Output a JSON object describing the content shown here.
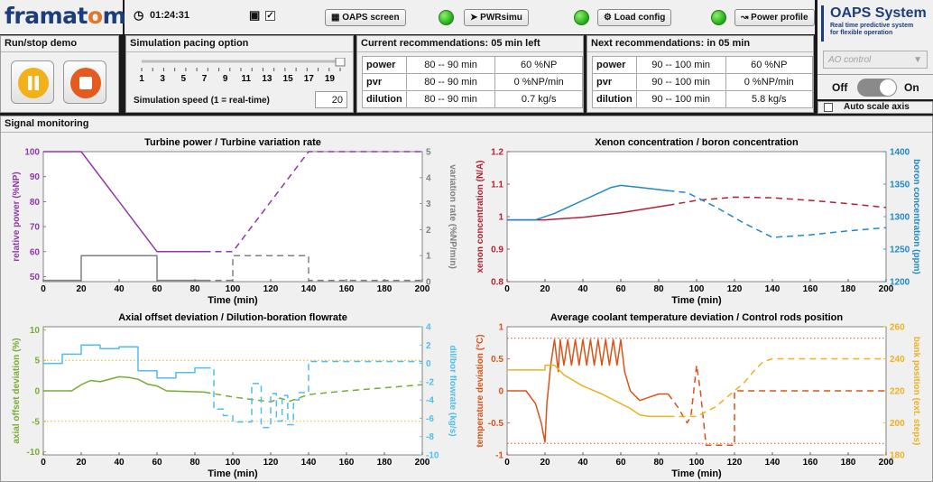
{
  "logo": {
    "pre": "framat",
    "o": "o",
    "post": "me"
  },
  "topbar": {
    "time": "01:24:31",
    "oaps_screen": "OAPS screen",
    "pwrsimu": "PWRsimu",
    "load_config": "Load config",
    "power_profile": "Power profile",
    "checkbox_mark": "✓"
  },
  "oaps": {
    "title": "OAPS System",
    "subtitle1": "Real time predictive system",
    "subtitle2": "for flexible operation",
    "select_value": "AO control",
    "off": "Off",
    "on": "On",
    "autoscale": "Auto scale axis"
  },
  "runstop": {
    "title": "Run/stop demo"
  },
  "pacing": {
    "title": "Simulation pacing option",
    "ticks": [
      "1",
      "3",
      "5",
      "7",
      "9",
      "11",
      "13",
      "15",
      "17",
      "19"
    ],
    "slider_value": 20,
    "speed_label": "Simulation speed (1 = real-time)",
    "speed_value": "20"
  },
  "current": {
    "title": "Current recommendations: 05 min left",
    "rows": [
      {
        "k": "power",
        "a": "80 -- 90 min",
        "b": "60 %NP"
      },
      {
        "k": "pvr",
        "a": "80 -- 90 min",
        "b": "0 %NP/min"
      },
      {
        "k": "dilution",
        "a": "80 -- 90 min",
        "b": "0.7 kg/s"
      }
    ]
  },
  "next": {
    "title": "Next recommendations: in 05 min",
    "rows": [
      {
        "k": "power",
        "a": "90 -- 100 min",
        "b": "60 %NP"
      },
      {
        "k": "pvr",
        "a": "90 -- 100 min",
        "b": "0 %NP/min"
      },
      {
        "k": "dilution",
        "a": "90 -- 100 min",
        "b": "5.8 kg/s"
      }
    ]
  },
  "monitor": {
    "title": "Signal monitoring"
  },
  "colors": {
    "purple": "#8e3aa6",
    "gray": "#808080",
    "red": "#b32134",
    "blue": "#1f88c8",
    "green": "#77ac30",
    "lightblue": "#4dbeee",
    "orange": "#d95319",
    "gold": "#edb120"
  },
  "chart_data": [
    {
      "type": "line",
      "title": "Turbine power / Turbine variation rate",
      "xlabel": "Time (min)",
      "ylabel": "relative power (%NP)",
      "y2label": "variation rate (%NP/min)",
      "xlim": [
        0,
        200
      ],
      "ylim": [
        48,
        100
      ],
      "y2lim": [
        0,
        5
      ],
      "xticks": [
        "0",
        "20",
        "40",
        "60",
        "80",
        "100",
        "120",
        "140",
        "160",
        "180",
        "200"
      ],
      "yticks": [
        "50",
        "60",
        "70",
        "80",
        "90",
        "100"
      ],
      "y2ticks": [
        "0",
        "1",
        "2",
        "3",
        "4",
        "5"
      ],
      "series": [
        {
          "axis": "left",
          "color": "#8e3aa6",
          "style": "solid",
          "x": [
            0,
            20,
            60,
            85
          ],
          "y": [
            100,
            100,
            60,
            60
          ]
        },
        {
          "axis": "left",
          "color": "#8e3aa6",
          "style": "dashed",
          "x": [
            85,
            100,
            140,
            200
          ],
          "y": [
            60,
            60,
            100,
            100
          ]
        },
        {
          "axis": "right",
          "color": "#808080",
          "style": "solid",
          "x": [
            0,
            20,
            20,
            60,
            60,
            85
          ],
          "y": [
            0.05,
            0.05,
            1,
            1,
            0.05,
            0.05
          ]
        },
        {
          "axis": "right",
          "color": "#808080",
          "style": "dashed",
          "x": [
            85,
            100,
            100,
            140,
            140,
            200
          ],
          "y": [
            0.05,
            0.05,
            1,
            1,
            0.05,
            0.05
          ]
        }
      ]
    },
    {
      "type": "line",
      "title": "Xenon concentration / boron concentration",
      "xlabel": "Time (min)",
      "ylabel": "xenon concentration (N/A)",
      "y2label": "boron concentration (ppm)",
      "xlim": [
        0,
        200
      ],
      "ylim": [
        0.8,
        1.2
      ],
      "y2lim": [
        1200,
        1400
      ],
      "xticks": [
        "0",
        "20",
        "40",
        "60",
        "80",
        "100",
        "120",
        "140",
        "160",
        "180",
        "200"
      ],
      "yticks": [
        "0.8",
        "0.9",
        "1",
        "1.1",
        "1.2"
      ],
      "y2ticks": [
        "1200",
        "1250",
        "1300",
        "1350",
        "1400"
      ],
      "series": [
        {
          "axis": "left",
          "color": "#b32134",
          "style": "solid",
          "x": [
            0,
            20,
            40,
            60,
            85
          ],
          "y": [
            0.99,
            0.99,
            0.998,
            1.012,
            1.035
          ]
        },
        {
          "axis": "left",
          "color": "#b32134",
          "style": "dashed",
          "x": [
            85,
            100,
            120,
            140,
            160,
            180,
            200
          ],
          "y": [
            1.035,
            1.05,
            1.06,
            1.058,
            1.05,
            1.04,
            1.028
          ]
        },
        {
          "axis": "right",
          "color": "#1f88c8",
          "style": "solid",
          "x": [
            0,
            15,
            25,
            40,
            55,
            60,
            70,
            85
          ],
          "y": [
            1295,
            1295,
            1305,
            1325,
            1345,
            1348,
            1345,
            1340
          ]
        },
        {
          "axis": "right",
          "color": "#1f88c8",
          "style": "dashed",
          "x": [
            85,
            95,
            110,
            125,
            140,
            160,
            180,
            200
          ],
          "y": [
            1340,
            1337,
            1315,
            1290,
            1268,
            1272,
            1278,
            1283
          ]
        }
      ]
    },
    {
      "type": "line",
      "title": "Axial offset deviation / Dilution-boration flowrate",
      "xlabel": "Time (min)",
      "ylabel": "axial offset deviation (%)",
      "y2label": "dil/bor flowrate (kg/s)",
      "xlim": [
        0,
        200
      ],
      "ylim": [
        -10.5,
        10.5
      ],
      "y2lim": [
        -10,
        4
      ],
      "xticks": [
        "0",
        "20",
        "40",
        "60",
        "80",
        "100",
        "120",
        "140",
        "160",
        "180",
        "200"
      ],
      "yticks": [
        "-10",
        "-5",
        "0",
        "5",
        "10"
      ],
      "y2ticks": [
        "-10",
        "-8",
        "-6",
        "-4",
        "-2",
        "0",
        "2",
        "4"
      ],
      "series": [
        {
          "axis": "left",
          "color": "#77ac30",
          "style": "solid",
          "x": [
            0,
            15,
            20,
            25,
            30,
            40,
            45,
            50,
            55,
            60,
            65,
            85
          ],
          "y": [
            0,
            0,
            1,
            1.7,
            1.5,
            2.3,
            2.2,
            1.9,
            1.1,
            0.8,
            0,
            -0.2
          ]
        },
        {
          "axis": "left",
          "color": "#77ac30",
          "style": "dashed",
          "x": [
            85,
            100,
            110,
            120,
            125,
            130,
            140,
            160,
            180,
            200
          ],
          "y": [
            -0.2,
            -1,
            -1.4,
            -1.8,
            -1.2,
            -1.7,
            -0.6,
            0,
            0.5,
            1
          ]
        },
        {
          "axis": "left",
          "color": "#edb120",
          "style": "dotted",
          "x": [
            0,
            200
          ],
          "y": [
            5,
            5
          ]
        },
        {
          "axis": "left",
          "color": "#edb120",
          "style": "dotted",
          "x": [
            0,
            200
          ],
          "y": [
            -5,
            -5
          ]
        },
        {
          "axis": "right",
          "color": "#4dbeee",
          "style": "solid",
          "x": [
            0,
            10,
            10,
            20,
            20,
            30,
            30,
            40,
            40,
            50,
            50,
            60,
            60,
            70,
            70,
            80,
            80,
            85
          ],
          "y": [
            0,
            0,
            1,
            1,
            2,
            2,
            1.6,
            1.6,
            1.8,
            1.8,
            -0.8,
            -0.8,
            -1.6,
            -1.6,
            -1,
            -1,
            -0.5,
            -0.5
          ]
        },
        {
          "axis": "right",
          "color": "#4dbeee",
          "style": "dashed",
          "x": [
            85,
            90,
            90,
            95,
            95,
            100,
            100,
            110,
            110,
            115,
            115,
            120,
            120,
            123,
            123,
            126,
            126,
            129,
            129,
            132,
            132,
            135,
            135,
            140,
            140,
            200
          ],
          "y": [
            -0.5,
            -0.5,
            -5,
            -5,
            -5.7,
            -5.7,
            -6.4,
            -6.4,
            -2.2,
            -2.2,
            -7,
            -7,
            -3.3,
            -3.3,
            -6.3,
            -6.3,
            -3.5,
            -3.5,
            -6.7,
            -6.7,
            -4,
            -4,
            -3.2,
            -3.2,
            0.2,
            0.2
          ]
        }
      ]
    },
    {
      "type": "line",
      "title": "Average coolant temperature deviation / Control rods position",
      "xlabel": "Time (min)",
      "ylabel": "temperature deviation (°C)",
      "y2label": "bank position (ext. steps)",
      "xlim": [
        0,
        200
      ],
      "ylim": [
        -1,
        1
      ],
      "y2lim": [
        180,
        260
      ],
      "xticks": [
        "0",
        "20",
        "40",
        "60",
        "80",
        "100",
        "120",
        "140",
        "160",
        "180",
        "200"
      ],
      "yticks": [
        "-1",
        "-0.5",
        "0",
        "0.5",
        "1"
      ],
      "y2ticks": [
        "180",
        "200",
        "220",
        "240",
        "260"
      ],
      "series": [
        {
          "axis": "left",
          "color": "#d95319",
          "style": "solid",
          "x": [
            0,
            10,
            15,
            18,
            20,
            21,
            23,
            25,
            27,
            28,
            30,
            32,
            34,
            36,
            38,
            40,
            42,
            44,
            46,
            48,
            50,
            52,
            54,
            56,
            58,
            60,
            62,
            65,
            70,
            75,
            80,
            85
          ],
          "y": [
            0,
            0,
            -0.2,
            -0.5,
            -0.8,
            -0.2,
            0.4,
            0.8,
            0.3,
            0.8,
            0.4,
            0.8,
            0.4,
            0.8,
            0.4,
            0.8,
            0.4,
            0.8,
            0.4,
            0.8,
            0.4,
            0.8,
            0.4,
            0.8,
            0.4,
            0.8,
            0.3,
            0,
            -0.15,
            -0.1,
            -0.05,
            -0.05
          ]
        },
        {
          "axis": "left",
          "color": "#d95319",
          "style": "dashed",
          "x": [
            85,
            90,
            95,
            97,
            100,
            102,
            105,
            120,
            120,
            200
          ],
          "y": [
            -0.05,
            -0.25,
            -0.5,
            -0.4,
            0.4,
            0,
            -0.85,
            -0.85,
            0,
            0
          ]
        },
        {
          "axis": "left",
          "color": "#d95319",
          "style": "dotted",
          "x": [
            0,
            200
          ],
          "y": [
            0.82,
            0.82
          ]
        },
        {
          "axis": "left",
          "color": "#d95319",
          "style": "dotted",
          "x": [
            0,
            200
          ],
          "y": [
            -0.82,
            -0.82
          ]
        },
        {
          "axis": "right",
          "color": "#edb120",
          "style": "solid",
          "x": [
            0,
            20,
            20,
            25,
            30,
            40,
            50,
            60,
            65,
            70,
            75,
            85
          ],
          "y": [
            233,
            233,
            236,
            236,
            230,
            223,
            218,
            212,
            209,
            205,
            204,
            204
          ]
        },
        {
          "axis": "right",
          "color": "#edb120",
          "style": "dashed",
          "x": [
            85,
            100,
            110,
            120,
            125,
            130,
            135,
            140,
            200
          ],
          "y": [
            204,
            204,
            210,
            220,
            225,
            232,
            238,
            240,
            240
          ]
        }
      ]
    }
  ]
}
